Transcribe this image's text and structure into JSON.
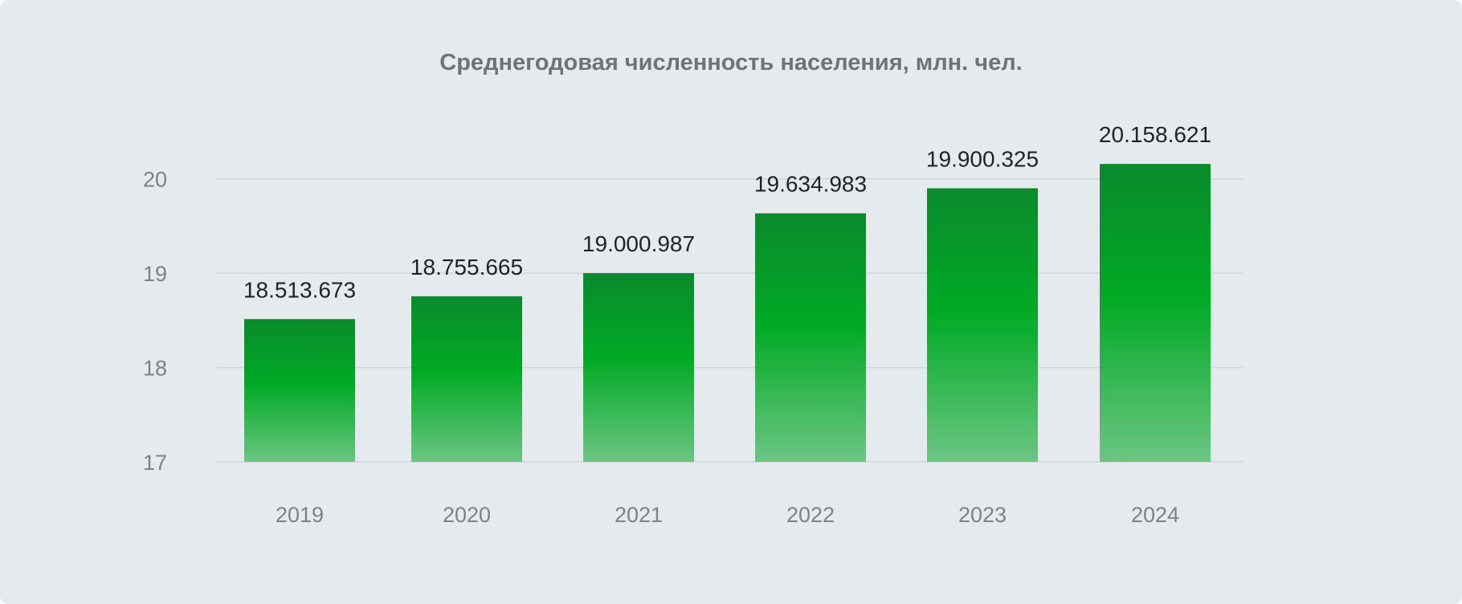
{
  "colors": {
    "background": "#e5eaee",
    "bar_top": "#0a8a2c",
    "bar_mid": "#00aa24",
    "bar_bottom": "#6cc583",
    "grid": "#cfd5da",
    "title": "#6e7378",
    "axis_text": "#7d8287",
    "data_label_text": "#1f2226"
  },
  "chart_data": {
    "type": "bar",
    "title": "Среднегодовая численность населения, млн. чел.",
    "xlabel": "",
    "ylabel": "",
    "categories": [
      "2019",
      "2020",
      "2021",
      "2022",
      "2023",
      "2024"
    ],
    "values": [
      18.513673,
      18.755665,
      19.000987,
      19.634983,
      19.900325,
      20.158621
    ],
    "data_labels": [
      "18.513.673",
      "18.755.665",
      "19.000.987",
      "19.634.983",
      "19.900.325",
      "20.158.621"
    ],
    "ylim": [
      17,
      20.1
    ],
    "yticks": [
      17,
      18,
      19,
      20
    ],
    "ytick_labels": [
      "17",
      "18",
      "19",
      "20"
    ],
    "grid": true,
    "legend": "none"
  }
}
